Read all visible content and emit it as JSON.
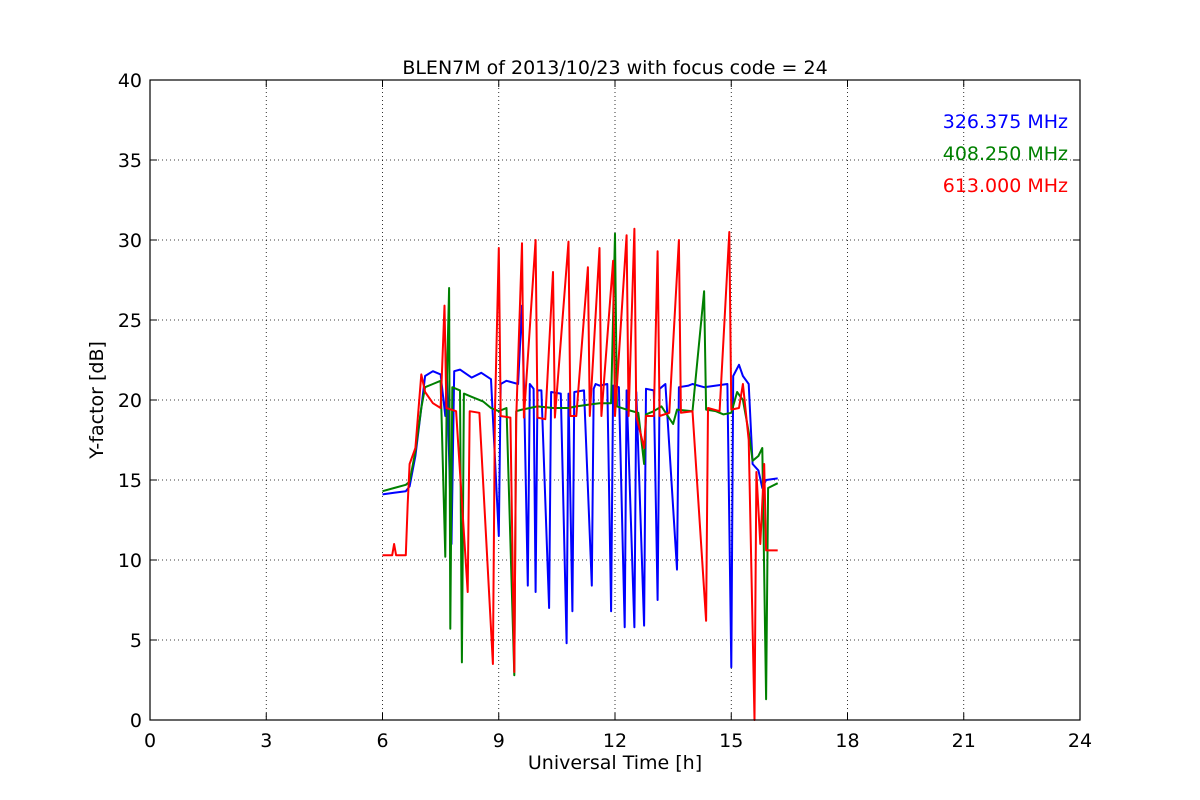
{
  "chart_data": {
    "type": "line",
    "title": "BLEN7M of 2013/10/23 with focus code = 24",
    "xlabel": "Universal Time [h]",
    "ylabel": "Y-factor [dB]",
    "xlim": [
      0,
      24
    ],
    "ylim": [
      0,
      40
    ],
    "xticks": [
      0,
      3,
      6,
      9,
      12,
      15,
      18,
      21,
      24
    ],
    "yticks": [
      0,
      5,
      10,
      15,
      20,
      25,
      30,
      35,
      40
    ],
    "grid": true,
    "legend_position": "top-right",
    "series": [
      {
        "name": "326.375 MHz",
        "color": "#0000ff",
        "points": [
          [
            6.0,
            14.1
          ],
          [
            6.3,
            14.2
          ],
          [
            6.6,
            14.3
          ],
          [
            6.7,
            14.6
          ],
          [
            6.85,
            16.5
          ],
          [
            7.0,
            19.5
          ],
          [
            7.1,
            21.5
          ],
          [
            7.3,
            21.8
          ],
          [
            7.5,
            21.6
          ],
          [
            7.62,
            19.0
          ],
          [
            7.66,
            21.7
          ],
          [
            7.78,
            11.0
          ],
          [
            7.85,
            21.8
          ],
          [
            8.0,
            21.9
          ],
          [
            8.3,
            21.4
          ],
          [
            8.55,
            21.7
          ],
          [
            8.8,
            21.3
          ],
          [
            9.0,
            11.5
          ],
          [
            9.05,
            21.0
          ],
          [
            9.2,
            21.2
          ],
          [
            9.5,
            21.0
          ],
          [
            9.6,
            25.9
          ],
          [
            9.65,
            21.0
          ],
          [
            9.75,
            8.4
          ],
          [
            9.8,
            21.0
          ],
          [
            9.9,
            20.7
          ],
          [
            9.95,
            8.0
          ],
          [
            10.0,
            20.6
          ],
          [
            10.1,
            20.6
          ],
          [
            10.3,
            7.0
          ],
          [
            10.35,
            20.5
          ],
          [
            10.6,
            20.4
          ],
          [
            10.75,
            4.8
          ],
          [
            10.8,
            20.4
          ],
          [
            10.9,
            6.8
          ],
          [
            10.95,
            20.5
          ],
          [
            11.2,
            20.6
          ],
          [
            11.4,
            8.4
          ],
          [
            11.45,
            20.7
          ],
          [
            11.5,
            21.0
          ],
          [
            11.6,
            20.9
          ],
          [
            11.8,
            21.0
          ],
          [
            11.9,
            6.8
          ],
          [
            11.95,
            20.9
          ],
          [
            12.1,
            20.8
          ],
          [
            12.25,
            5.8
          ],
          [
            12.3,
            20.6
          ],
          [
            12.5,
            5.8
          ],
          [
            12.55,
            20.5
          ],
          [
            12.75,
            5.9
          ],
          [
            12.8,
            20.7
          ],
          [
            13.0,
            20.6
          ],
          [
            13.1,
            7.5
          ],
          [
            13.15,
            20.7
          ],
          [
            13.3,
            21.0
          ],
          [
            13.6,
            9.4
          ],
          [
            13.65,
            20.8
          ],
          [
            13.9,
            20.9
          ],
          [
            14.0,
            21.0
          ],
          [
            14.3,
            20.8
          ],
          [
            14.6,
            20.9
          ],
          [
            14.9,
            21.0
          ],
          [
            15.0,
            3.3
          ],
          [
            15.05,
            21.5
          ],
          [
            15.2,
            22.2
          ],
          [
            15.3,
            21.5
          ],
          [
            15.45,
            21.0
          ],
          [
            15.55,
            16.0
          ],
          [
            15.7,
            15.6
          ],
          [
            15.8,
            14.5
          ],
          [
            15.9,
            15.0
          ],
          [
            16.2,
            15.1
          ]
        ]
      },
      {
        "name": "408.250 MHz",
        "color": "#008000",
        "points": [
          [
            6.0,
            14.3
          ],
          [
            6.3,
            14.5
          ],
          [
            6.6,
            14.7
          ],
          [
            6.7,
            14.9
          ],
          [
            6.85,
            16.8
          ],
          [
            7.0,
            19.5
          ],
          [
            7.1,
            20.8
          ],
          [
            7.3,
            21.0
          ],
          [
            7.5,
            21.2
          ],
          [
            7.62,
            10.2
          ],
          [
            7.66,
            21.0
          ],
          [
            7.72,
            27.0
          ],
          [
            7.75,
            5.7
          ],
          [
            7.8,
            20.8
          ],
          [
            8.0,
            20.6
          ],
          [
            8.05,
            3.6
          ],
          [
            8.1,
            20.4
          ],
          [
            8.3,
            20.2
          ],
          [
            8.6,
            19.9
          ],
          [
            8.8,
            19.5
          ],
          [
            9.0,
            19.3
          ],
          [
            9.2,
            19.5
          ],
          [
            9.4,
            2.8
          ],
          [
            9.45,
            19.3
          ],
          [
            9.6,
            19.4
          ],
          [
            9.8,
            19.5
          ],
          [
            10.0,
            19.6
          ],
          [
            10.4,
            19.5
          ],
          [
            10.8,
            19.5
          ],
          [
            11.0,
            19.6
          ],
          [
            11.3,
            19.7
          ],
          [
            11.6,
            19.8
          ],
          [
            11.9,
            19.8
          ],
          [
            12.0,
            30.4
          ],
          [
            12.05,
            19.6
          ],
          [
            12.3,
            19.4
          ],
          [
            12.6,
            19.2
          ],
          [
            12.75,
            16.0
          ],
          [
            12.8,
            19.1
          ],
          [
            13.0,
            19.3
          ],
          [
            13.2,
            19.6
          ],
          [
            13.5,
            18.5
          ],
          [
            13.6,
            19.4
          ],
          [
            14.0,
            19.3
          ],
          [
            14.3,
            26.8
          ],
          [
            14.35,
            19.4
          ],
          [
            14.6,
            19.3
          ],
          [
            14.8,
            19.1
          ],
          [
            15.0,
            19.2
          ],
          [
            15.15,
            20.5
          ],
          [
            15.3,
            20.0
          ],
          [
            15.45,
            18.0
          ],
          [
            15.55,
            16.2
          ],
          [
            15.7,
            16.5
          ],
          [
            15.8,
            17.0
          ],
          [
            15.9,
            1.3
          ],
          [
            15.95,
            14.5
          ],
          [
            16.2,
            14.8
          ]
        ]
      },
      {
        "name": "613.000 MHz",
        "color": "#ff0000",
        "points": [
          [
            6.0,
            10.3
          ],
          [
            6.25,
            10.3
          ],
          [
            6.3,
            11.0
          ],
          [
            6.35,
            10.3
          ],
          [
            6.6,
            10.3
          ],
          [
            6.65,
            13.5
          ],
          [
            6.7,
            16.0
          ],
          [
            6.85,
            17.0
          ],
          [
            7.0,
            21.6
          ],
          [
            7.1,
            20.5
          ],
          [
            7.3,
            19.8
          ],
          [
            7.5,
            19.5
          ],
          [
            7.6,
            25.9
          ],
          [
            7.65,
            19.5
          ],
          [
            7.9,
            19.3
          ],
          [
            8.2,
            8.0
          ],
          [
            8.25,
            19.3
          ],
          [
            8.5,
            19.2
          ],
          [
            8.85,
            3.5
          ],
          [
            8.9,
            19.1
          ],
          [
            9.0,
            29.5
          ],
          [
            9.05,
            19.0
          ],
          [
            9.3,
            18.9
          ],
          [
            9.4,
            3.0
          ],
          [
            9.45,
            18.8
          ],
          [
            9.6,
            29.8
          ],
          [
            9.65,
            18.9
          ],
          [
            9.95,
            30.0
          ],
          [
            10.0,
            18.9
          ],
          [
            10.2,
            18.8
          ],
          [
            10.4,
            28.0
          ],
          [
            10.45,
            18.9
          ],
          [
            10.8,
            29.9
          ],
          [
            10.85,
            19.0
          ],
          [
            11.0,
            19.0
          ],
          [
            11.3,
            28.3
          ],
          [
            11.35,
            19.0
          ],
          [
            11.6,
            29.5
          ],
          [
            11.65,
            19.0
          ],
          [
            11.95,
            28.7
          ],
          [
            12.0,
            19.0
          ],
          [
            12.3,
            30.3
          ],
          [
            12.35,
            19.0
          ],
          [
            12.5,
            30.7
          ],
          [
            12.55,
            19.0
          ],
          [
            12.75,
            17.0
          ],
          [
            12.8,
            19.0
          ],
          [
            13.0,
            19.0
          ],
          [
            13.1,
            29.3
          ],
          [
            13.15,
            19.0
          ],
          [
            13.4,
            19.2
          ],
          [
            13.65,
            30.0
          ],
          [
            13.7,
            19.2
          ],
          [
            14.0,
            19.3
          ],
          [
            14.35,
            6.2
          ],
          [
            14.4,
            19.5
          ],
          [
            14.7,
            19.3
          ],
          [
            14.95,
            30.5
          ],
          [
            15.0,
            19.4
          ],
          [
            15.2,
            19.5
          ],
          [
            15.3,
            21.0
          ],
          [
            15.45,
            17.5
          ],
          [
            15.6,
            0.0
          ],
          [
            15.65,
            15.5
          ],
          [
            15.75,
            11.0
          ],
          [
            15.85,
            16.0
          ],
          [
            15.9,
            10.6
          ],
          [
            16.2,
            10.6
          ]
        ]
      }
    ]
  }
}
